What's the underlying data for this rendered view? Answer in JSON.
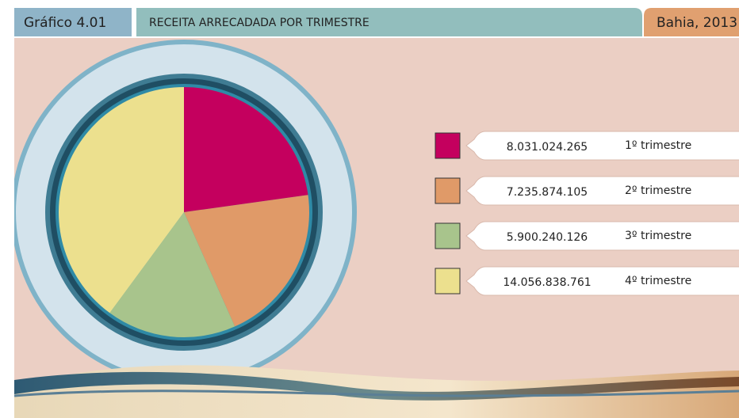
{
  "chart_data": {
    "type": "pie",
    "label": "Gráfico 4.01",
    "title": "RECEITA ARRECADADA POR TRIMESTRE",
    "subtitle": "Bahia, 2013",
    "categories": [
      "1º trimestre",
      "2º trimestre",
      "3º trimestre",
      "4º trimestre"
    ],
    "values": [
      8031024265,
      7235874105,
      5900240126,
      14056838761
    ],
    "value_labels": [
      "8.031.024.265",
      "7.235.874.105",
      "5.900.240.126",
      "14.056.838.761"
    ],
    "colors": [
      "#c4005e",
      "#e09a68",
      "#a8c48c",
      "#ece08e"
    ]
  }
}
